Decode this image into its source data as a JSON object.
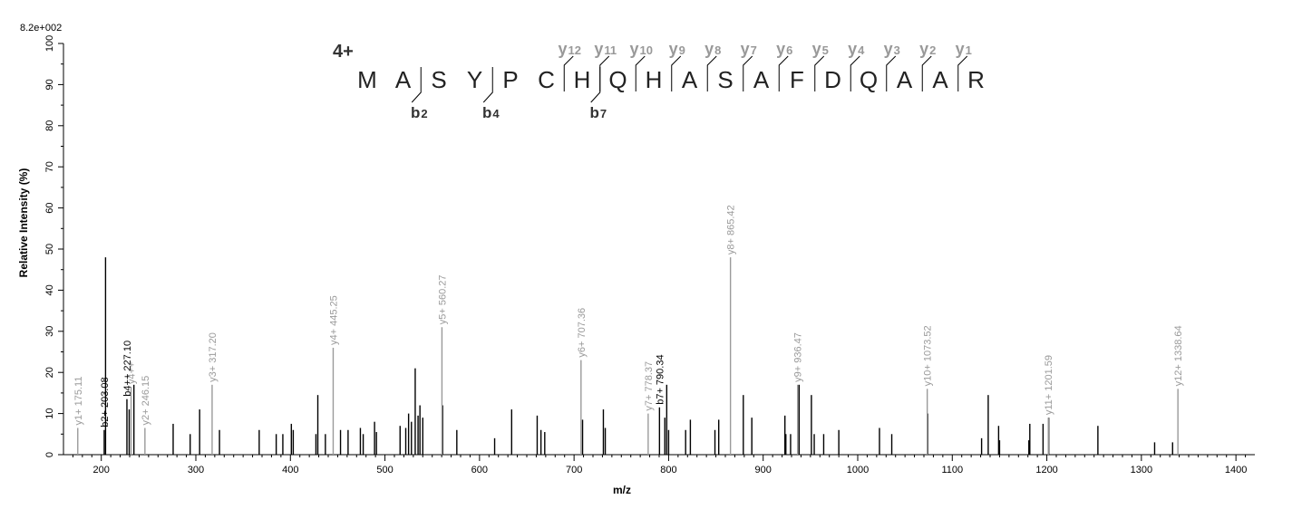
{
  "chart_data": {
    "type": "bar",
    "max_intensity": "8.2e+002",
    "xlabel": "m/z",
    "ylabel": "Relative   Intensity (%)",
    "xlim": [
      160,
      1420
    ],
    "ylim": [
      0,
      100
    ],
    "x_ticks": [
      200,
      300,
      400,
      500,
      600,
      700,
      800,
      900,
      1000,
      1100,
      1200,
      1300,
      1400
    ],
    "y_ticks": [
      0,
      10,
      20,
      30,
      40,
      50,
      60,
      70,
      80,
      90,
      100
    ],
    "colors": {
      "y_ion": "#9a9a9a",
      "b_ion": "#000000",
      "unassigned": "#000000"
    },
    "charge_state": "4+",
    "sequence": [
      "M",
      "A",
      "S",
      "Y",
      "P",
      "C",
      "H",
      "Q",
      "H",
      "A",
      "S",
      "A",
      "F",
      "D",
      "Q",
      "A",
      "A",
      "R"
    ],
    "y_ions": [
      {
        "label": "y",
        "sub": "12",
        "after": 5
      },
      {
        "label": "y",
        "sub": "11",
        "after": 6
      },
      {
        "label": "y",
        "sub": "10",
        "after": 7
      },
      {
        "label": "y",
        "sub": "9",
        "after": 8
      },
      {
        "label": "y",
        "sub": "8",
        "after": 9
      },
      {
        "label": "y",
        "sub": "7",
        "after": 10
      },
      {
        "label": "y",
        "sub": "6",
        "after": 11
      },
      {
        "label": "y",
        "sub": "5",
        "after": 12
      },
      {
        "label": "y",
        "sub": "4",
        "after": 13
      },
      {
        "label": "y",
        "sub": "3",
        "after": 14
      },
      {
        "label": "y",
        "sub": "2",
        "after": 15
      },
      {
        "label": "y",
        "sub": "1",
        "after": 16
      }
    ],
    "b_ions": [
      {
        "label": "b",
        "sub": "2",
        "after": 1
      },
      {
        "label": "b",
        "sub": "4",
        "after": 3
      },
      {
        "label": "b",
        "sub": "7",
        "after": 6
      }
    ],
    "labeled_peaks": [
      {
        "mz": 175.11,
        "intensity": 6.5,
        "label": "y1+ 175.11",
        "kind": "y"
      },
      {
        "mz": 203.08,
        "intensity": 6,
        "label": "b2+ 203.08",
        "kind": "b"
      },
      {
        "mz": 227.1,
        "intensity": 13.5,
        "label": "b4++ 227.10",
        "kind": "b"
      },
      {
        "mz": 231.5,
        "intensity": 16.5,
        "label": "y4++",
        "kind": "y"
      },
      {
        "mz": 246.15,
        "intensity": 6.5,
        "label": "y2+ 246.15",
        "kind": "y"
      },
      {
        "mz": 317.2,
        "intensity": 17,
        "label": "y3+ 317.20",
        "kind": "y"
      },
      {
        "mz": 445.25,
        "intensity": 26,
        "label": "y4+ 445.25",
        "kind": "y"
      },
      {
        "mz": 560.27,
        "intensity": 31,
        "label": "y5+ 560.27",
        "kind": "y"
      },
      {
        "mz": 707.36,
        "intensity": 23,
        "label": "y6+ 707.36",
        "kind": "y"
      },
      {
        "mz": 778.37,
        "intensity": 10,
        "label": "y7+ 778.37",
        "kind": "y"
      },
      {
        "mz": 790.34,
        "intensity": 11.5,
        "label": "b7+ 790.34",
        "kind": "b"
      },
      {
        "mz": 865.42,
        "intensity": 48,
        "label": "y8+ 865.42",
        "kind": "y"
      },
      {
        "mz": 936.47,
        "intensity": 17,
        "label": "y9+ 936.47",
        "kind": "y"
      },
      {
        "mz": 1073.52,
        "intensity": 16,
        "label": "y10+ 1073.52",
        "kind": "y"
      },
      {
        "mz": 1201.59,
        "intensity": 9,
        "label": "y11+ 1201.59",
        "kind": "y"
      },
      {
        "mz": 1338.64,
        "intensity": 16,
        "label": "y12+ 1338.64",
        "kind": "y"
      }
    ],
    "unlabeled_peaks": [
      {
        "mz": 204.5,
        "intensity": 48
      },
      {
        "mz": 229.5,
        "intensity": 11
      },
      {
        "mz": 234.5,
        "intensity": 17
      },
      {
        "mz": 276,
        "intensity": 7.5
      },
      {
        "mz": 294,
        "intensity": 5
      },
      {
        "mz": 304,
        "intensity": 11
      },
      {
        "mz": 325,
        "intensity": 6
      },
      {
        "mz": 367,
        "intensity": 6
      },
      {
        "mz": 385,
        "intensity": 5
      },
      {
        "mz": 392,
        "intensity": 5
      },
      {
        "mz": 401,
        "intensity": 7.5
      },
      {
        "mz": 403,
        "intensity": 6
      },
      {
        "mz": 427,
        "intensity": 5
      },
      {
        "mz": 429,
        "intensity": 14.5
      },
      {
        "mz": 437,
        "intensity": 5
      },
      {
        "mz": 453,
        "intensity": 6
      },
      {
        "mz": 461,
        "intensity": 6
      },
      {
        "mz": 474,
        "intensity": 6.5
      },
      {
        "mz": 477,
        "intensity": 5
      },
      {
        "mz": 489,
        "intensity": 8
      },
      {
        "mz": 491,
        "intensity": 5.5
      },
      {
        "mz": 516,
        "intensity": 7
      },
      {
        "mz": 522,
        "intensity": 6.5
      },
      {
        "mz": 525,
        "intensity": 10
      },
      {
        "mz": 528,
        "intensity": 8
      },
      {
        "mz": 532,
        "intensity": 21
      },
      {
        "mz": 535,
        "intensity": 9.5
      },
      {
        "mz": 537,
        "intensity": 12
      },
      {
        "mz": 540,
        "intensity": 9
      },
      {
        "mz": 561,
        "intensity": 12
      },
      {
        "mz": 576,
        "intensity": 6
      },
      {
        "mz": 616,
        "intensity": 4
      },
      {
        "mz": 634,
        "intensity": 11
      },
      {
        "mz": 661,
        "intensity": 9.5
      },
      {
        "mz": 665,
        "intensity": 6
      },
      {
        "mz": 669,
        "intensity": 5.5
      },
      {
        "mz": 709,
        "intensity": 8.5
      },
      {
        "mz": 731,
        "intensity": 11
      },
      {
        "mz": 733,
        "intensity": 6.5
      },
      {
        "mz": 796,
        "intensity": 9
      },
      {
        "mz": 798,
        "intensity": 17
      },
      {
        "mz": 800,
        "intensity": 6
      },
      {
        "mz": 818,
        "intensity": 6
      },
      {
        "mz": 823,
        "intensity": 8.5
      },
      {
        "mz": 849,
        "intensity": 6
      },
      {
        "mz": 853,
        "intensity": 8.5
      },
      {
        "mz": 879,
        "intensity": 14.5
      },
      {
        "mz": 888,
        "intensity": 9
      },
      {
        "mz": 923,
        "intensity": 9.5
      },
      {
        "mz": 924,
        "intensity": 5
      },
      {
        "mz": 929,
        "intensity": 5
      },
      {
        "mz": 938,
        "intensity": 17
      },
      {
        "mz": 951,
        "intensity": 14.5
      },
      {
        "mz": 954,
        "intensity": 5
      },
      {
        "mz": 964,
        "intensity": 5
      },
      {
        "mz": 980,
        "intensity": 6
      },
      {
        "mz": 1023,
        "intensity": 6.5
      },
      {
        "mz": 1036,
        "intensity": 5
      },
      {
        "mz": 1074,
        "intensity": 10
      },
      {
        "mz": 1131,
        "intensity": 4
      },
      {
        "mz": 1138,
        "intensity": 14.5
      },
      {
        "mz": 1149,
        "intensity": 7
      },
      {
        "mz": 1150,
        "intensity": 3.5
      },
      {
        "mz": 1181,
        "intensity": 3.5
      },
      {
        "mz": 1182,
        "intensity": 7.5
      },
      {
        "mz": 1196,
        "intensity": 7.5
      },
      {
        "mz": 1202,
        "intensity": 9
      },
      {
        "mz": 1254,
        "intensity": 7
      },
      {
        "mz": 1314,
        "intensity": 3
      },
      {
        "mz": 1333,
        "intensity": 3
      }
    ]
  }
}
